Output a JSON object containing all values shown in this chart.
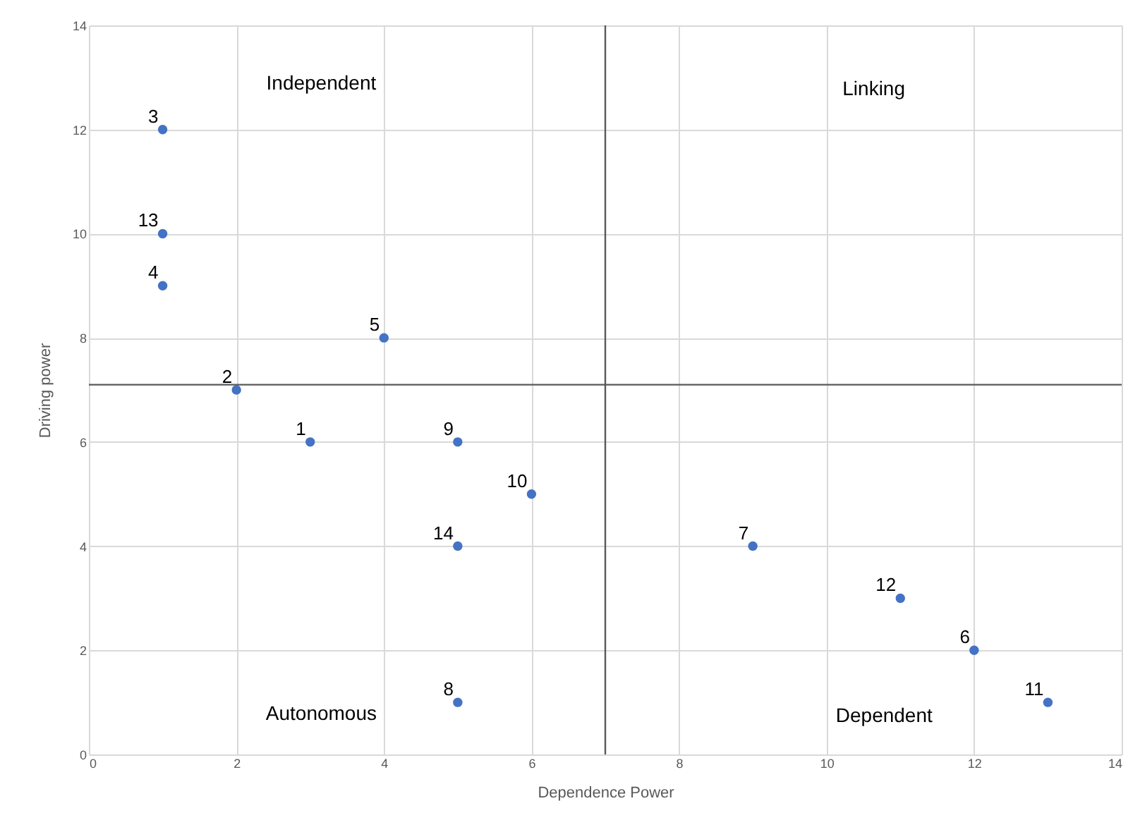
{
  "chart_data": {
    "type": "scatter",
    "xlabel": "Dependence Power",
    "ylabel": "Driving power",
    "series": [
      {
        "name": "3",
        "color": "#4472c4",
        "x": [
          1
        ],
        "values": [
          12
        ]
      },
      {
        "name": "13",
        "color": "#4472c4",
        "x": [
          1
        ],
        "values": [
          10
        ]
      },
      {
        "name": "4",
        "color": "#4472c4",
        "x": [
          1
        ],
        "values": [
          9
        ]
      },
      {
        "name": "5",
        "color": "#4472c4",
        "x": [
          4
        ],
        "values": [
          8
        ]
      },
      {
        "name": "2",
        "color": "#4472c4",
        "x": [
          2
        ],
        "values": [
          7
        ]
      },
      {
        "name": "1",
        "color": "#4472c4",
        "x": [
          3
        ],
        "values": [
          6
        ]
      },
      {
        "name": "9",
        "color": "#4472c4",
        "x": [
          5
        ],
        "values": [
          6
        ]
      },
      {
        "name": "10",
        "color": "#4472c4",
        "x": [
          6
        ],
        "values": [
          5
        ]
      },
      {
        "name": "14",
        "color": "#4472c4",
        "x": [
          5
        ],
        "values": [
          4
        ]
      },
      {
        "name": "8",
        "color": "#4472c4",
        "x": [
          5
        ],
        "values": [
          1
        ]
      },
      {
        "name": "7",
        "color": "#4472c4",
        "x": [
          9
        ],
        "values": [
          4
        ]
      },
      {
        "name": "12",
        "color": "#4472c4",
        "x": [
          11
        ],
        "values": [
          3
        ]
      },
      {
        "name": "6",
        "color": "#4472c4",
        "x": [
          12
        ],
        "values": [
          2
        ]
      },
      {
        "name": "11",
        "color": "#4472c4",
        "x": [
          13
        ],
        "values": [
          1
        ]
      }
    ],
    "marker": "circle",
    "xlim": [
      0,
      14
    ],
    "xticks": [
      0,
      2,
      4,
      6,
      8,
      10,
      12,
      14
    ],
    "ylim": [
      0,
      14
    ],
    "yticks": [
      0,
      2,
      4,
      6,
      8,
      10,
      12,
      14
    ],
    "grid": true,
    "ref_lines": [
      {
        "axis": "x",
        "value": 7,
        "color": "#595959"
      },
      {
        "axis": "y",
        "value": 7.1,
        "color": "#595959"
      }
    ],
    "annotations": [
      "Independent",
      "Linking",
      "Autonomous",
      "Dependent"
    ]
  }
}
